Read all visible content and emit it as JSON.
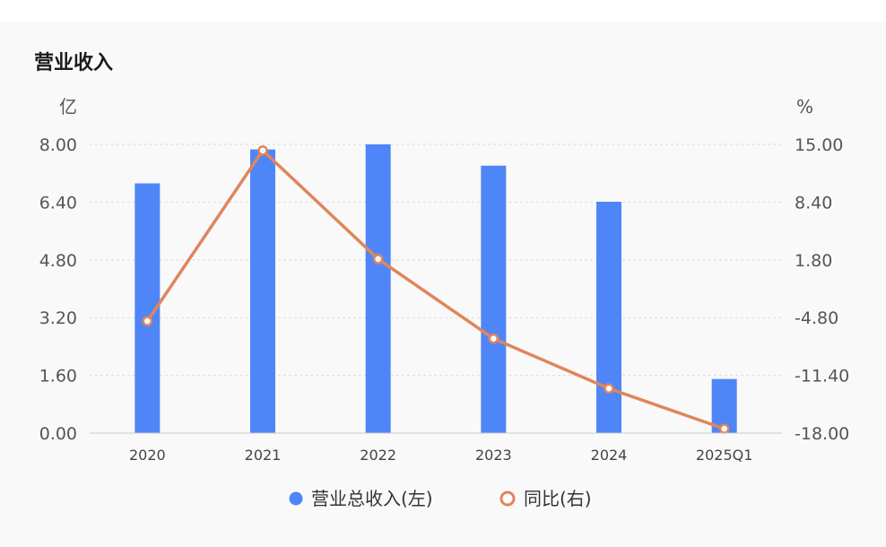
{
  "chart_title": "营业收入",
  "chart_data": {
    "type": "bar",
    "categories": [
      "2020",
      "2021",
      "2022",
      "2023",
      "2024",
      "2025Q1"
    ],
    "series": [
      {
        "name": "营业总收入(左)",
        "type": "bar",
        "axis": "left",
        "color": "#4f86f7",
        "values": [
          6.92,
          7.86,
          8.0,
          7.41,
          6.41,
          1.5
        ]
      },
      {
        "name": "同比(右)",
        "type": "line",
        "axis": "right",
        "color": "#e0855c",
        "values": [
          -5.2,
          14.3,
          1.9,
          -7.2,
          -12.9,
          -17.5
        ]
      }
    ],
    "y_left": {
      "unit": "亿",
      "ylim": [
        0,
        8
      ],
      "ticks": [
        "8.00",
        "6.40",
        "4.80",
        "3.20",
        "1.60",
        "0.00"
      ]
    },
    "y_right": {
      "unit": "%",
      "ylim": [
        -18,
        15
      ],
      "ticks": [
        "15.00",
        "8.40",
        "1.80",
        "-4.80",
        "-11.40",
        "-18.00"
      ]
    },
    "grid": true,
    "legend_position": "bottom-center"
  }
}
